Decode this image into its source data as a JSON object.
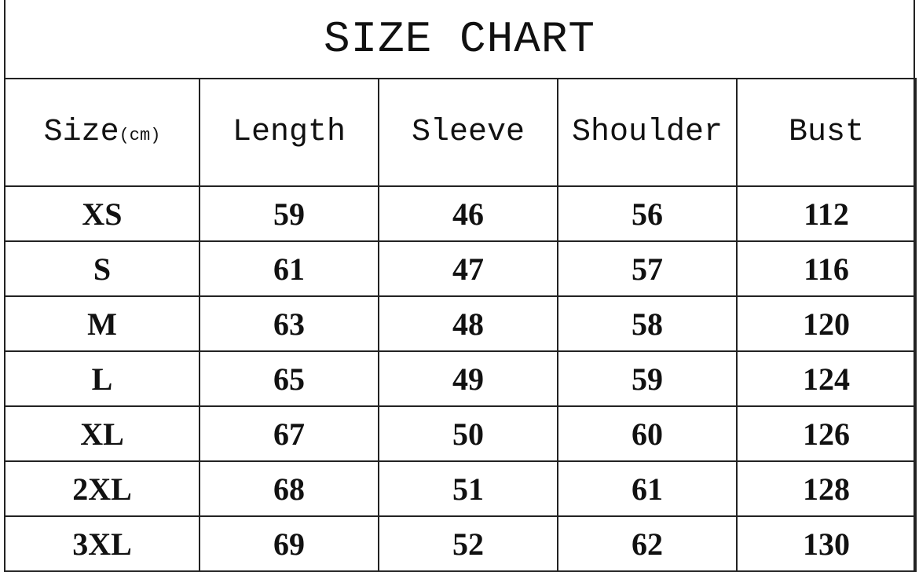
{
  "title": "SIZE CHART",
  "headers": [
    "Size",
    "Length",
    "Sleeve",
    "Shoulder",
    "Bust"
  ],
  "unit": "(cm)",
  "rows": [
    [
      "XS",
      "59",
      "46",
      "56",
      "112"
    ],
    [
      "S",
      "61",
      "47",
      "57",
      "116"
    ],
    [
      "M",
      "63",
      "48",
      "58",
      "120"
    ],
    [
      "L",
      "65",
      "49",
      "59",
      "124"
    ],
    [
      "XL",
      "67",
      "50",
      "60",
      "126"
    ],
    [
      "2XL",
      "68",
      "51",
      "61",
      "128"
    ],
    [
      "3XL",
      "69",
      "52",
      "62",
      "130"
    ]
  ]
}
